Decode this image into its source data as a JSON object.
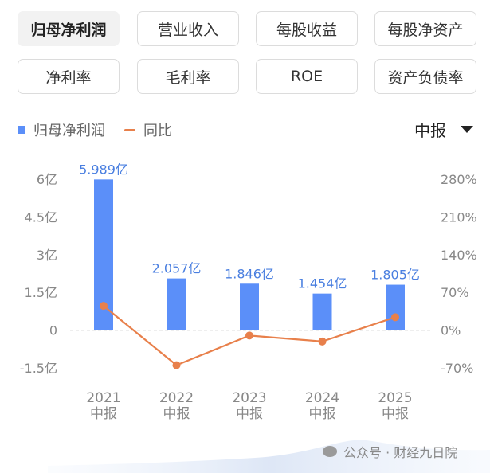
{
  "tabs": [
    {
      "label": "归母净利润",
      "active": true
    },
    {
      "label": "营业收入",
      "active": false
    },
    {
      "label": "每股收益",
      "active": false
    },
    {
      "label": "每股净资产",
      "active": false
    },
    {
      "label": "净利率",
      "active": false
    },
    {
      "label": "毛利率",
      "active": false
    },
    {
      "label": "ROE",
      "active": false
    },
    {
      "label": "资产负债率",
      "active": false
    }
  ],
  "legend": {
    "bar_label": "归母净利润",
    "line_label": "同比"
  },
  "period": {
    "label": "中报"
  },
  "watermark": "公众号 · 财经九日院",
  "colors": {
    "bar": "#5b8ff9",
    "line": "#e8804b",
    "bar_label": "#4a7fe0"
  },
  "chart_data": {
    "type": "bar",
    "categories": [
      "2021\n中报",
      "2022\n中报",
      "2023\n中报",
      "2024\n中报",
      "2025\n中报"
    ],
    "series": [
      {
        "name": "归母净利润",
        "type": "bar",
        "axis": "left",
        "values": [
          5.989,
          2.057,
          1.846,
          1.454,
          1.805
        ],
        "labels": [
          "5.989亿",
          "2.057亿",
          "1.846亿",
          "1.454亿",
          "1.805亿"
        ]
      },
      {
        "name": "同比",
        "type": "line",
        "axis": "right",
        "values": [
          45,
          -65,
          -10,
          -21,
          24
        ]
      }
    ],
    "y_left": {
      "ticks": [
        6,
        4.5,
        3,
        1.5,
        0,
        -1.5
      ],
      "tick_labels": [
        "6亿",
        "4.5亿",
        "3亿",
        "1.5亿",
        "0",
        "-1.5亿"
      ],
      "ylim": [
        -1.5,
        6
      ]
    },
    "y_right": {
      "ticks": [
        280,
        210,
        140,
        70,
        0,
        -70
      ],
      "tick_labels": [
        "280%",
        "210%",
        "140%",
        "70%",
        "0%",
        "-70%"
      ],
      "ylim": [
        -70,
        280
      ]
    },
    "zero_line": "dashed",
    "grid": false
  }
}
